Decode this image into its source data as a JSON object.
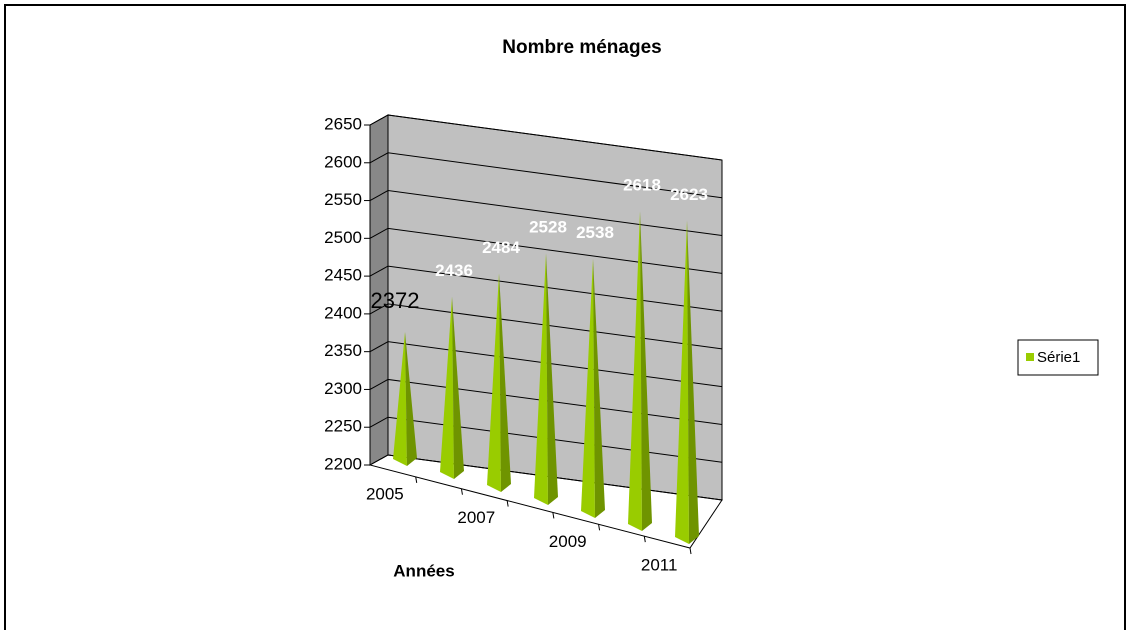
{
  "chart_data": {
    "type": "bar3d-pyramid",
    "title": "Nombre ménages",
    "x_label": "Années",
    "categories": [
      "2005",
      null,
      "2007",
      null,
      "2009",
      null,
      "2011"
    ],
    "series": [
      {
        "name": "Série1",
        "color": "#99cc00",
        "values": [
          2372,
          2436,
          2484,
          2528,
          2538,
          2618,
          2623
        ]
      }
    ],
    "ylim": [
      2200,
      2650
    ],
    "yticks": [
      2200,
      2250,
      2300,
      2350,
      2400,
      2450,
      2500,
      2550,
      2600,
      2650
    ],
    "grid": true,
    "legend": "right"
  }
}
